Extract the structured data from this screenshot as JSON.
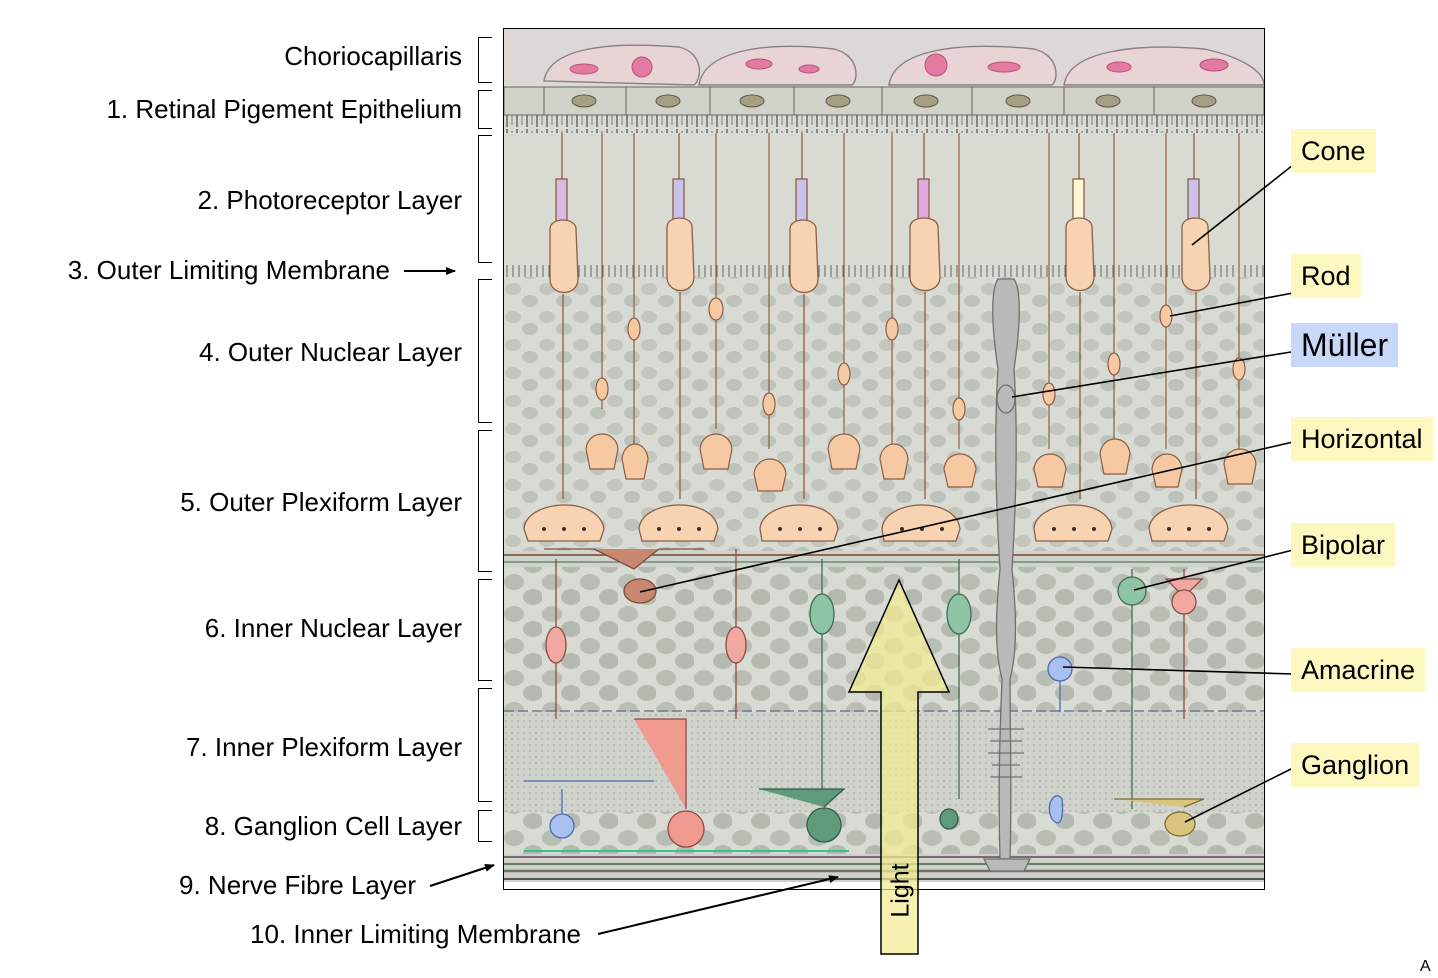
{
  "layers": [
    {
      "id": "choriocapillaris",
      "label": "Choriocapillaris"
    },
    {
      "id": "rpe",
      "label": "1. Retinal Pigement Epithelium"
    },
    {
      "id": "photoreceptor",
      "label": "2. Photoreceptor Layer"
    },
    {
      "id": "olm",
      "label": "3. Outer Limiting Membrane"
    },
    {
      "id": "onl",
      "label": "4. Outer Nuclear Layer"
    },
    {
      "id": "opl",
      "label": "5. Outer Plexiform Layer"
    },
    {
      "id": "inl",
      "label": "6. Inner Nuclear Layer"
    },
    {
      "id": "ipl",
      "label": "7. Inner Plexiform Layer"
    },
    {
      "id": "gcl",
      "label": "8. Ganglion Cell Layer"
    },
    {
      "id": "nfl",
      "label": "9. Nerve Fibre Layer"
    },
    {
      "id": "ilm",
      "label": "10. Inner Limiting Membrane"
    }
  ],
  "cells": [
    {
      "id": "cone",
      "label": "Cone",
      "color": "#fdf7c0"
    },
    {
      "id": "rod",
      "label": "Rod",
      "color": "#fdf7c0"
    },
    {
      "id": "muller",
      "label": "Müller",
      "color": "#c7d8f8"
    },
    {
      "id": "horizontal",
      "label": "Horizontal",
      "color": "#fdf7c0"
    },
    {
      "id": "bipolar",
      "label": "Bipolar",
      "color": "#fdf7c0"
    },
    {
      "id": "amacrine",
      "label": "Amacrine",
      "color": "#fdf7c0"
    },
    {
      "id": "ganglion",
      "label": "Ganglion",
      "color": "#fdf7c0"
    }
  ],
  "light_label": "Light",
  "corner_text": "A"
}
